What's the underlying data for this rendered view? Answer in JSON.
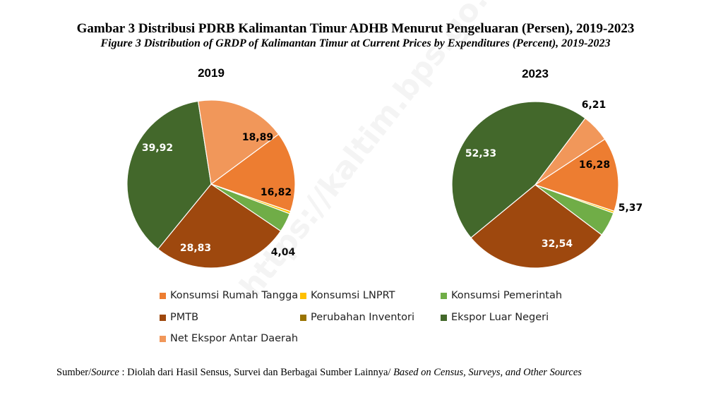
{
  "title": {
    "main": "Gambar 3  Distribusi PDRB Kalimantan Timur ADHB Menurut Pengeluaran (Persen), 2019-2023",
    "sub": "Figure 3  Distribution of GRDP of Kalimantan Timur at Current Prices by Expenditures (Percent), 2019-2023"
  },
  "chart_data": {
    "type": "pie",
    "categories": [
      "Konsumsi Rumah Tangga",
      "Konsumsi LNPRT",
      "Konsumsi Pemerintah",
      "PMTB",
      "Perubahan Inventori",
      "Ekspor Luar Negeri",
      "Net Ekspor Antar Daerah"
    ],
    "colors": [
      "#ED7D31",
      "#FFC000",
      "#70AD47",
      "#9E480E",
      "#997300",
      "#43682B",
      "#F1975A"
    ],
    "series": [
      {
        "name": "2019",
        "values": [
          16.82,
          0.5,
          4.04,
          28.83,
          -0.1,
          39.92,
          18.89
        ],
        "value_labels": [
          "16,82",
          "",
          "4,04",
          "28,83",
          "",
          "39,92",
          "18,89"
        ]
      },
      {
        "name": "2023",
        "values": [
          16.28,
          0.45,
          5.37,
          32.54,
          -0.14,
          52.33,
          6.21
        ],
        "value_labels": [
          "16,28",
          "",
          "5,37",
          "32,54",
          "",
          "52,33",
          "6,21"
        ]
      }
    ],
    "legend_placement": "bottom"
  },
  "legend": [
    {
      "label": "Konsumsi Rumah Tangga",
      "color": "#ED7D31"
    },
    {
      "label": "Konsumsi LNPRT",
      "color": "#FFC000"
    },
    {
      "label": "Konsumsi Pemerintah",
      "color": "#70AD47"
    },
    {
      "label": "PMTB",
      "color": "#9E480E"
    },
    {
      "label": "Perubahan Inventori",
      "color": "#997300"
    },
    {
      "label": "Ekspor Luar Negeri",
      "color": "#43682B"
    },
    {
      "label": "Net Ekspor Antar Daerah",
      "color": "#F1975A"
    }
  ],
  "source": {
    "prefix": "Sumber/",
    "prefix_italic": "Source",
    "text": " : Diolah dari Hasil Sensus, Survei dan Berbagai Sumber Lainnya/ ",
    "text_italic": "Based on Census, Surveys, and Other Sources"
  },
  "watermark": "https://kaltim.bps.go.id"
}
